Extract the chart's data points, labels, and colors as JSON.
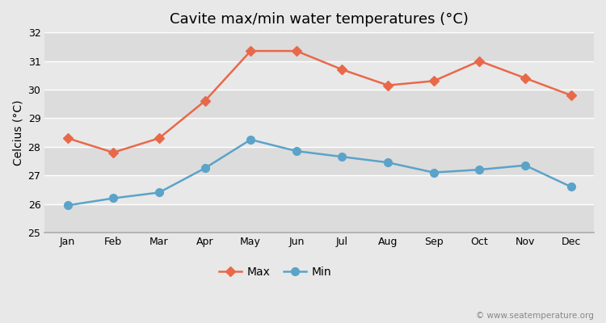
{
  "title": "Cavite max/min water temperatures (°C)",
  "ylabel": "Celcius (°C)",
  "months": [
    "Jan",
    "Feb",
    "Mar",
    "Apr",
    "May",
    "Jun",
    "Jul",
    "Aug",
    "Sep",
    "Oct",
    "Nov",
    "Dec"
  ],
  "max_values": [
    28.3,
    27.8,
    28.3,
    29.6,
    31.35,
    31.35,
    30.7,
    30.15,
    30.3,
    31.0,
    30.4,
    29.8
  ],
  "min_values": [
    25.95,
    26.2,
    26.4,
    27.25,
    28.25,
    27.85,
    27.65,
    27.45,
    27.1,
    27.2,
    27.35,
    26.6
  ],
  "max_color": "#e8694a",
  "min_color": "#5ba3c9",
  "max_label": "Max",
  "min_label": "Min",
  "ylim": [
    25,
    32
  ],
  "yticks": [
    25,
    26,
    27,
    28,
    29,
    30,
    31,
    32
  ],
  "band_colors": [
    "#dcdcdc",
    "#e8e8e8"
  ],
  "figure_bg": "#e8e8e8",
  "grid_color": "#ffffff",
  "watermark": "© www.seatemperature.org",
  "title_fontsize": 13,
  "label_fontsize": 10,
  "tick_fontsize": 9,
  "marker_size_max": 6,
  "marker_size_min": 7,
  "line_width": 1.8
}
